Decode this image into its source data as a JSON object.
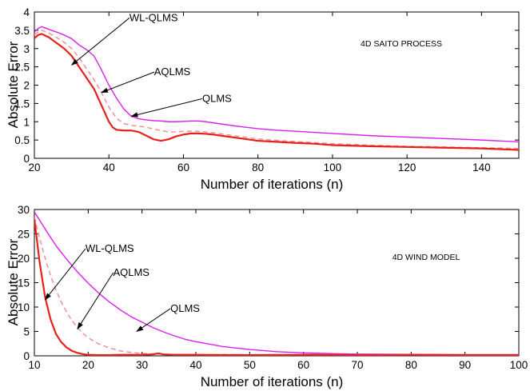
{
  "chart_data": [
    {
      "type": "line",
      "annotation": "4D SAITO PROCESS",
      "xlabel": "Number of iterations (n)",
      "ylabel": "Absolute Error",
      "xlim": [
        20,
        150
      ],
      "ylim": [
        0,
        4
      ],
      "xticks": [
        20,
        40,
        60,
        80,
        100,
        120,
        140
      ],
      "yticks": [
        0,
        0.5,
        1,
        1.5,
        2,
        2.5,
        3,
        3.5,
        4
      ],
      "grid": false,
      "series": [
        {
          "name": "WL-QLMS",
          "color": "#e8201a",
          "dash": "solid",
          "x": [
            20,
            21,
            22,
            24,
            26,
            28,
            30,
            32,
            34,
            36,
            38,
            40,
            41,
            42,
            44,
            46,
            48,
            50,
            52,
            54,
            56,
            58,
            60,
            62,
            64,
            66,
            68,
            70,
            75,
            80,
            85,
            90,
            95,
            100,
            110,
            120,
            130,
            140,
            150
          ],
          "values": [
            3.28,
            3.37,
            3.4,
            3.3,
            3.15,
            3.0,
            2.8,
            2.5,
            2.2,
            1.9,
            1.45,
            1.0,
            0.85,
            0.78,
            0.76,
            0.76,
            0.72,
            0.62,
            0.52,
            0.48,
            0.52,
            0.6,
            0.65,
            0.68,
            0.68,
            0.67,
            0.65,
            0.62,
            0.55,
            0.48,
            0.45,
            0.42,
            0.4,
            0.36,
            0.33,
            0.31,
            0.29,
            0.27,
            0.23
          ]
        },
        {
          "name": "AQLMS",
          "color": "#f28a90",
          "dash": "dashed",
          "x": [
            20,
            21,
            22,
            24,
            26,
            28,
            30,
            32,
            34,
            36,
            38,
            40,
            42,
            44,
            46,
            48,
            50,
            52,
            54,
            56,
            58,
            60,
            62,
            64,
            66,
            68,
            70,
            75,
            80,
            85,
            90,
            95,
            100,
            110,
            120,
            130,
            140,
            150
          ],
          "values": [
            3.38,
            3.45,
            3.5,
            3.42,
            3.3,
            3.17,
            3.0,
            2.75,
            2.45,
            2.15,
            1.8,
            1.4,
            1.1,
            0.95,
            0.9,
            0.88,
            0.85,
            0.8,
            0.76,
            0.72,
            0.72,
            0.74,
            0.74,
            0.74,
            0.72,
            0.7,
            0.67,
            0.6,
            0.53,
            0.49,
            0.46,
            0.43,
            0.4,
            0.36,
            0.33,
            0.31,
            0.29,
            0.27
          ]
        },
        {
          "name": "QLMS",
          "color": "#d81ff0",
          "dash": "solid",
          "x": [
            20,
            21,
            22,
            24,
            26,
            28,
            30,
            32,
            34,
            36,
            38,
            40,
            42,
            44,
            46,
            48,
            50,
            52,
            54,
            56,
            58,
            60,
            62,
            64,
            66,
            68,
            70,
            75,
            80,
            85,
            90,
            95,
            100,
            110,
            120,
            130,
            140,
            150
          ],
          "values": [
            3.45,
            3.55,
            3.6,
            3.52,
            3.45,
            3.37,
            3.27,
            3.1,
            2.97,
            2.8,
            2.42,
            2.0,
            1.65,
            1.35,
            1.15,
            1.08,
            1.05,
            1.03,
            1.02,
            1.0,
            1.0,
            1.01,
            1.02,
            1.02,
            1.0,
            0.97,
            0.94,
            0.87,
            0.81,
            0.77,
            0.74,
            0.71,
            0.68,
            0.62,
            0.58,
            0.54,
            0.5,
            0.45
          ]
        }
      ],
      "annotations": [
        {
          "text": "WL-QLMS",
          "x": 52,
          "y": 3.75,
          "target_x": 30,
          "target_y": 2.55
        },
        {
          "text": "AQLMS",
          "x": 57,
          "y": 2.27,
          "target_x": 38,
          "target_y": 1.8
        },
        {
          "text": "QLMS",
          "x": 69,
          "y": 1.54,
          "target_x": 46,
          "target_y": 1.15
        }
      ]
    },
    {
      "type": "line",
      "annotation": "4D WIND MODEL",
      "xlabel": "Number of iterations (n)",
      "ylabel": "Absolute Error",
      "xlim": [
        10,
        100
      ],
      "ylim": [
        0,
        30
      ],
      "xticks": [
        10,
        20,
        30,
        40,
        50,
        60,
        70,
        80,
        90,
        100
      ],
      "yticks": [
        0,
        5,
        10,
        15,
        20,
        25,
        30
      ],
      "grid": false,
      "series": [
        {
          "name": "WL-QLMS",
          "color": "#e8201a",
          "dash": "solid",
          "x": [
            10,
            11,
            12,
            13,
            14,
            15,
            16,
            17,
            18,
            19,
            20,
            22,
            24,
            26,
            28,
            30,
            32,
            33,
            34,
            36,
            40,
            50,
            60,
            70,
            80,
            90,
            100
          ],
          "values": [
            28.0,
            19.0,
            12.0,
            7.5,
            4.5,
            2.8,
            1.7,
            1.0,
            0.6,
            0.35,
            0.2,
            0.15,
            0.15,
            0.2,
            0.2,
            0.2,
            0.3,
            0.5,
            0.3,
            0.2,
            0.2,
            0.15,
            0.2,
            0.15,
            0.2,
            0.15,
            0.15
          ]
        },
        {
          "name": "AQLMS",
          "color": "#f28a90",
          "dash": "dashed",
          "x": [
            10,
            11,
            12,
            13,
            14,
            15,
            16,
            17,
            18,
            19,
            20,
            22,
            24,
            26,
            28,
            30,
            35,
            40,
            50,
            60,
            70,
            80,
            90,
            100
          ],
          "values": [
            28.5,
            24.0,
            20.0,
            16.5,
            13.5,
            11.0,
            9.0,
            7.2,
            5.8,
            4.6,
            3.7,
            2.4,
            1.6,
            1.0,
            0.7,
            0.5,
            0.3,
            0.25,
            0.25,
            0.2,
            0.2,
            0.2,
            0.2,
            0.2
          ]
        },
        {
          "name": "QLMS",
          "color": "#d81ff0",
          "dash": "solid",
          "x": [
            10,
            12,
            14,
            16,
            18,
            20,
            22,
            24,
            26,
            28,
            30,
            32,
            34,
            36,
            38,
            40,
            45,
            50,
            55,
            60,
            65,
            70,
            80,
            90,
            100
          ],
          "values": [
            29.5,
            26.0,
            22.6,
            19.8,
            17.2,
            14.9,
            12.8,
            11.0,
            9.4,
            8.0,
            6.9,
            5.8,
            4.9,
            4.1,
            3.4,
            2.9,
            1.9,
            1.3,
            0.85,
            0.6,
            0.45,
            0.35,
            0.3,
            0.25,
            0.25
          ]
        }
      ],
      "annotations": [
        {
          "text": "WL-QLMS",
          "x": 24,
          "y": 21.3,
          "target_x": 12,
          "target_y": 11.5
        },
        {
          "text": "AQLMS",
          "x": 28,
          "y": 16.4,
          "target_x": 18,
          "target_y": 5.5
        },
        {
          "text": "QLMS",
          "x": 38,
          "y": 9.0,
          "target_x": 29,
          "target_y": 5.0
        }
      ]
    }
  ]
}
